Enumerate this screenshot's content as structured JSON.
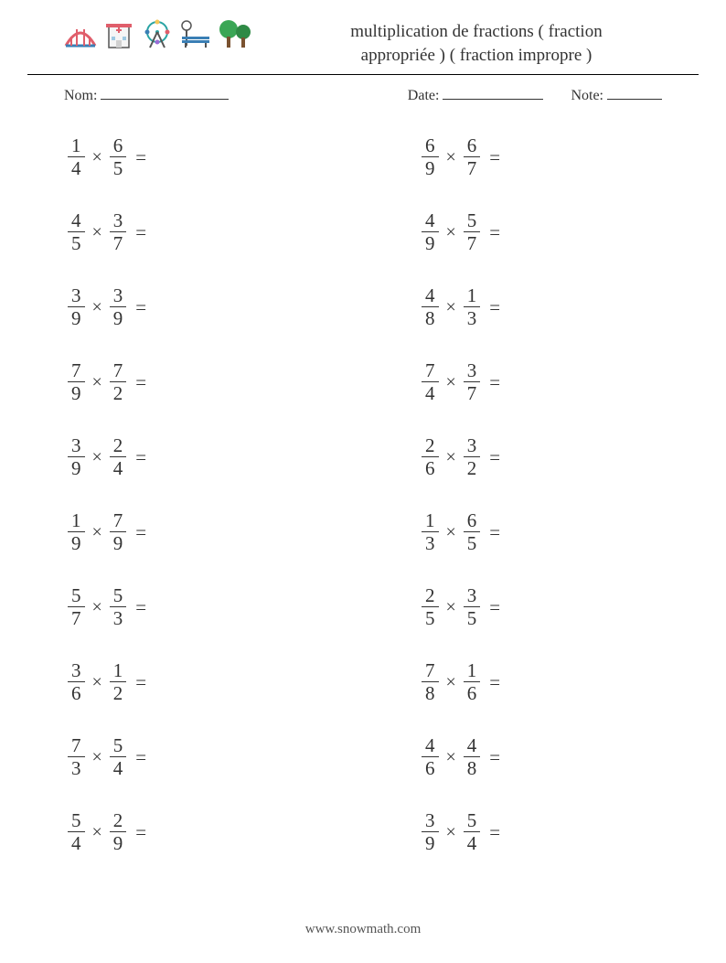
{
  "header": {
    "title_line1": "multiplication de fractions ( fraction",
    "title_line2": "appropriée ) ( fraction impropre )",
    "icons": [
      {
        "name": "bridge-icon",
        "fill": "#e05e6b",
        "stroke": "#c94a57"
      },
      {
        "name": "hospital-icon",
        "fill": "#f2f2f2",
        "stroke": "#e05e6b"
      },
      {
        "name": "ferris-wheel-icon",
        "fill": "#ffffff",
        "stroke": "#2aa4a4"
      },
      {
        "name": "bench-icon",
        "fill": "#3a7fb5",
        "stroke": "#3a7fb5"
      },
      {
        "name": "trees-icon",
        "fill": "#3aa655",
        "stroke": "#2e8a45"
      }
    ]
  },
  "meta": {
    "name_label": "Nom:",
    "date_label": "Date:",
    "note_label": "Note:",
    "name_blank_width": 140,
    "date_blank_width": 110,
    "note_blank_width": 60
  },
  "style": {
    "text_color": "#333333",
    "background_color": "#ffffff",
    "font_family": "Georgia, 'Times New Roman', serif",
    "title_fontsize": 19,
    "meta_fontsize": 16,
    "problem_fontsize": 21,
    "columns": 2,
    "rows": 10,
    "times_symbol": "×",
    "equals_symbol": "="
  },
  "problems": {
    "left": [
      {
        "a_num": "1",
        "a_den": "4",
        "b_num": "6",
        "b_den": "5"
      },
      {
        "a_num": "4",
        "a_den": "5",
        "b_num": "3",
        "b_den": "7"
      },
      {
        "a_num": "3",
        "a_den": "9",
        "b_num": "3",
        "b_den": "9"
      },
      {
        "a_num": "7",
        "a_den": "9",
        "b_num": "7",
        "b_den": "2"
      },
      {
        "a_num": "3",
        "a_den": "9",
        "b_num": "2",
        "b_den": "4"
      },
      {
        "a_num": "1",
        "a_den": "9",
        "b_num": "7",
        "b_den": "9"
      },
      {
        "a_num": "5",
        "a_den": "7",
        "b_num": "5",
        "b_den": "3"
      },
      {
        "a_num": "3",
        "a_den": "6",
        "b_num": "1",
        "b_den": "2"
      },
      {
        "a_num": "7",
        "a_den": "3",
        "b_num": "5",
        "b_den": "4"
      },
      {
        "a_num": "5",
        "a_den": "4",
        "b_num": "2",
        "b_den": "9"
      }
    ],
    "right": [
      {
        "a_num": "6",
        "a_den": "9",
        "b_num": "6",
        "b_den": "7"
      },
      {
        "a_num": "4",
        "a_den": "9",
        "b_num": "5",
        "b_den": "7"
      },
      {
        "a_num": "4",
        "a_den": "8",
        "b_num": "1",
        "b_den": "3"
      },
      {
        "a_num": "7",
        "a_den": "4",
        "b_num": "3",
        "b_den": "7"
      },
      {
        "a_num": "2",
        "a_den": "6",
        "b_num": "3",
        "b_den": "2"
      },
      {
        "a_num": "1",
        "a_den": "3",
        "b_num": "6",
        "b_den": "5"
      },
      {
        "a_num": "2",
        "a_den": "5",
        "b_num": "3",
        "b_den": "5"
      },
      {
        "a_num": "7",
        "a_den": "8",
        "b_num": "1",
        "b_den": "6"
      },
      {
        "a_num": "4",
        "a_den": "6",
        "b_num": "4",
        "b_den": "8"
      },
      {
        "a_num": "3",
        "a_den": "9",
        "b_num": "5",
        "b_den": "4"
      }
    ]
  },
  "footer": {
    "text": "www.snowmath.com"
  }
}
